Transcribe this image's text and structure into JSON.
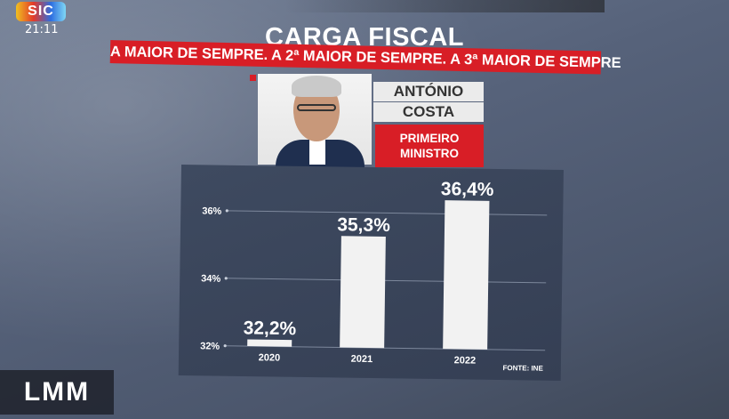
{
  "broadcast": {
    "channel_logo": "SIC",
    "clock": "21:11",
    "bottom_logo": "LMM"
  },
  "title": "CARGA FISCAL",
  "banner": "A MAIOR DE SEMPRE. A 2ª MAIOR DE SEMPRE. A 3ª MAIOR DE SEMPRE",
  "person": {
    "name_line_1": "ANTÓNIO",
    "name_line_2": "COSTA",
    "role_line_1": "PRIMEIRO",
    "role_line_2": "MINISTRO"
  },
  "colors": {
    "accent_red": "#d81e26",
    "bar": "#f2f2f2",
    "panel": "#3a4559"
  },
  "chart_data": {
    "type": "bar",
    "categories": [
      "2020",
      "2021",
      "2022"
    ],
    "values": [
      32.2,
      35.3,
      36.4
    ],
    "value_labels": [
      "32,2%",
      "35,3%",
      "36,4%"
    ],
    "y_ticks": [
      32,
      34,
      36
    ],
    "y_tick_labels": [
      "32%",
      "34%",
      "36%"
    ],
    "ylim": [
      32,
      36.4
    ],
    "grid": true,
    "source": "FONTE: INE"
  }
}
